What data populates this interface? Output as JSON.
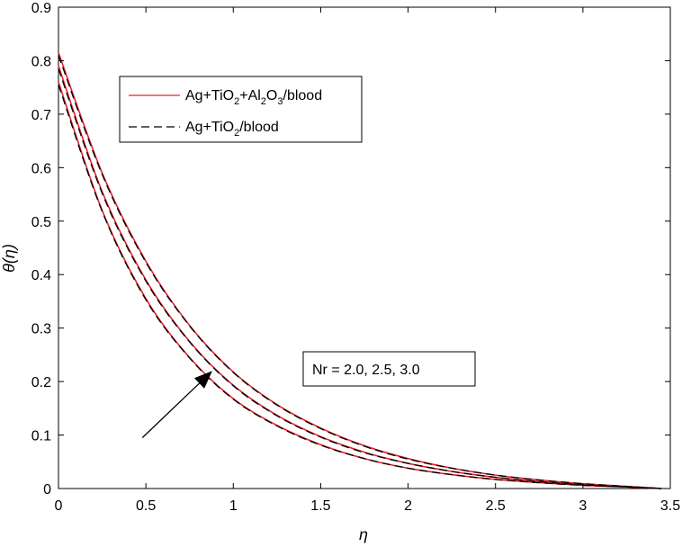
{
  "chart_data": {
    "type": "line",
    "xlabel": "η",
    "ylabel": "θ(η)",
    "xlim": [
      0,
      3.5
    ],
    "ylim": [
      0,
      0.9
    ],
    "xticks": [
      "0",
      "0.5",
      "1",
      "1.5",
      "2",
      "2.5",
      "3",
      "3.5"
    ],
    "yticks": [
      "0",
      "0.1",
      "0.2",
      "0.3",
      "0.4",
      "0.5",
      "0.6",
      "0.7",
      "0.8",
      "0.9"
    ],
    "grid": false,
    "legend_position": "top-left",
    "legend": {
      "entry1": {
        "base": "Ag+TiO",
        "sub1": "2",
        "mid": "+Al",
        "sub2": "2",
        "mid2": "O",
        "sub3": "3",
        "tail": "/blood",
        "color": "#e8202a",
        "style": "solid"
      },
      "entry2": {
        "base": "Ag+TiO",
        "sub1": "2",
        "tail": "/blood",
        "color": "#000000",
        "style": "dashed"
      }
    },
    "annotation": "Nr = 2.0, 2.5, 3.0",
    "series": [
      {
        "group": "Ag+TiO2+Al2O3/blood",
        "param": "Nr = 2.0",
        "color": "#e8202a",
        "style": "solid",
        "x": [
          0,
          0.25,
          0.5,
          0.75,
          1.0,
          1.25,
          1.5,
          1.75,
          2.0,
          2.25,
          2.5,
          2.75,
          3.0,
          3.25,
          3.45
        ],
        "y": [
          0.76,
          0.52,
          0.355,
          0.245,
          0.168,
          0.118,
          0.082,
          0.056,
          0.038,
          0.026,
          0.017,
          0.011,
          0.006,
          0.003,
          0.0
        ]
      },
      {
        "group": "Ag+TiO2+Al2O3/blood",
        "param": "Nr = 2.5",
        "color": "#e8202a",
        "style": "solid",
        "x": [
          0,
          0.25,
          0.5,
          0.75,
          1.0,
          1.25,
          1.5,
          1.75,
          2.0,
          2.25,
          2.5,
          2.75,
          3.0,
          3.25,
          3.45
        ],
        "y": [
          0.79,
          0.555,
          0.39,
          0.275,
          0.193,
          0.137,
          0.097,
          0.068,
          0.047,
          0.032,
          0.021,
          0.013,
          0.007,
          0.003,
          0.0
        ]
      },
      {
        "group": "Ag+TiO2+Al2O3/blood",
        "param": "Nr = 3.0",
        "color": "#e8202a",
        "style": "solid",
        "x": [
          0,
          0.25,
          0.5,
          0.75,
          1.0,
          1.25,
          1.5,
          1.75,
          2.0,
          2.25,
          2.5,
          2.75,
          3.0,
          3.25,
          3.45
        ],
        "y": [
          0.815,
          0.59,
          0.425,
          0.305,
          0.218,
          0.157,
          0.113,
          0.08,
          0.056,
          0.038,
          0.025,
          0.016,
          0.009,
          0.004,
          0.0
        ]
      },
      {
        "group": "Ag+TiO2/blood",
        "param": "Nr = 2.0",
        "color": "#000000",
        "style": "dashed",
        "x": [
          0,
          0.25,
          0.5,
          0.75,
          1.0,
          1.25,
          1.5,
          1.75,
          2.0,
          2.25,
          2.5,
          2.75,
          3.0,
          3.25,
          3.45
        ],
        "y": [
          0.755,
          0.518,
          0.353,
          0.244,
          0.167,
          0.117,
          0.081,
          0.056,
          0.038,
          0.026,
          0.017,
          0.011,
          0.006,
          0.003,
          0.0
        ]
      },
      {
        "group": "Ag+TiO2/blood",
        "param": "Nr = 2.5",
        "color": "#000000",
        "style": "dashed",
        "x": [
          0,
          0.25,
          0.5,
          0.75,
          1.0,
          1.25,
          1.5,
          1.75,
          2.0,
          2.25,
          2.5,
          2.75,
          3.0,
          3.25,
          3.45
        ],
        "y": [
          0.785,
          0.552,
          0.388,
          0.274,
          0.192,
          0.136,
          0.096,
          0.067,
          0.047,
          0.032,
          0.021,
          0.013,
          0.007,
          0.003,
          0.0
        ]
      },
      {
        "group": "Ag+TiO2/blood",
        "param": "Nr = 3.0",
        "color": "#000000",
        "style": "dashed",
        "x": [
          0,
          0.25,
          0.5,
          0.75,
          1.0,
          1.25,
          1.5,
          1.75,
          2.0,
          2.25,
          2.5,
          2.75,
          3.0,
          3.25,
          3.45
        ],
        "y": [
          0.81,
          0.587,
          0.423,
          0.304,
          0.217,
          0.156,
          0.112,
          0.079,
          0.055,
          0.038,
          0.025,
          0.016,
          0.009,
          0.004,
          0.0
        ]
      }
    ],
    "arrow": {
      "from": [
        0.48,
        0.095
      ],
      "to": [
        0.88,
        0.22
      ],
      "color": "#000000"
    }
  }
}
